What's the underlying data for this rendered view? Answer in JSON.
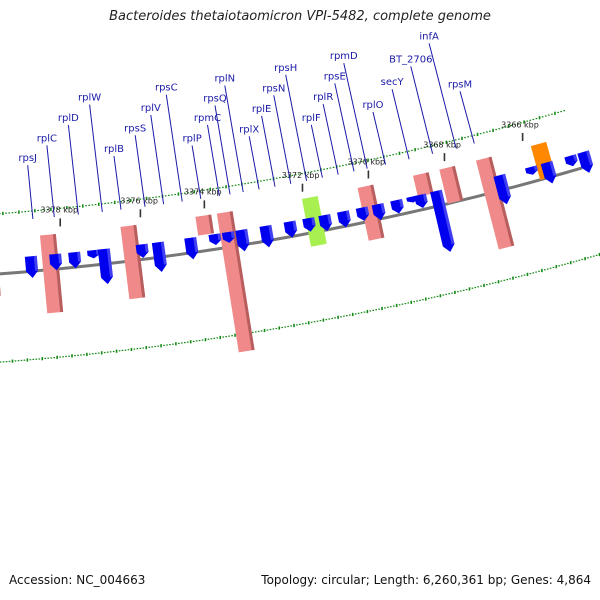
{
  "title": "Bacteroides thetaiotaomicron VPI-5482, complete genome",
  "footer": {
    "accession_label": "Accession:",
    "accession": "NC_004663",
    "topology_label": "Topology:",
    "topology": "circular",
    "length_label": "Length:",
    "length": "6,260,361 bp",
    "genes_label": "Genes:",
    "genes": "4,864"
  },
  "colors": {
    "rrna_track": "#f08a8a",
    "highlight_gene": "#a8f050",
    "orange_gene": "#ff8800",
    "cds_arrow": "#0000ee",
    "backbone": "#777777",
    "gc_dots": "#118811",
    "label": "#1a1aa8"
  },
  "kbp_ticks": [
    "3378 kbp",
    "3376 kbp",
    "3374 kbp",
    "3372 kbp",
    "3370 kbp",
    "3368 kbp",
    "3366 kbp"
  ],
  "genes_labeled": [
    "rpsJ",
    "rplC",
    "rplD",
    "rplW",
    "rplB",
    "rpsS",
    "rplV",
    "rpsC",
    "rplP",
    "rpmC",
    "rpsQ",
    "rplN",
    "rplX",
    "rplE",
    "rpsN",
    "rpsH",
    "rplF",
    "rplR",
    "rpsE",
    "rpmD",
    "rplO",
    "secY",
    "BT_2706",
    "infA",
    "rpsM"
  ]
}
